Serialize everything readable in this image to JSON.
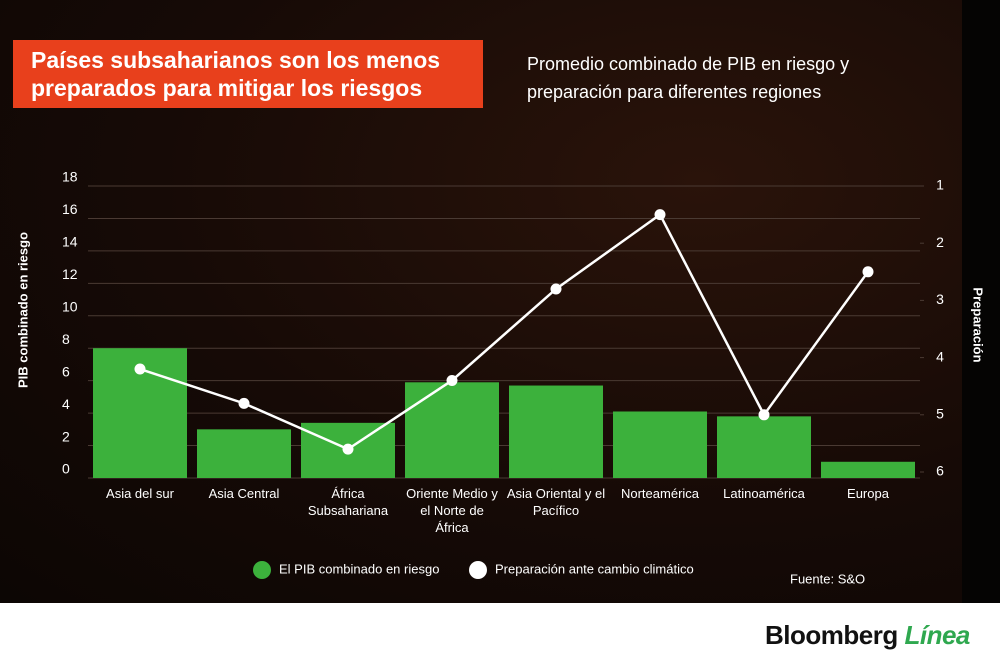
{
  "chart_data": {
    "type": "bar-line",
    "title": "Países subsaharianos son los menos preparados para mitigar los riesgos",
    "subtitle": "Promedio combinado de PIB en riesgo y preparación para diferentes regiones",
    "y_label": "PIB combinado en riesgo",
    "y2_label": "Preparación",
    "source": "Fuente: S&O",
    "categories": [
      "Asia del sur",
      "Asia Central",
      "África Subsahariana",
      "Oriente Medio y el Norte de África",
      "Asia Oriental y el Pacífico",
      "Norteamérica",
      "Latinoamérica",
      "Europa"
    ],
    "series": [
      {
        "name": "El PIB combinado en riesgo",
        "type": "bar",
        "color": "#3cb13c",
        "values": [
          8.0,
          3.0,
          3.4,
          5.9,
          5.7,
          4.1,
          3.8,
          1.0
        ]
      },
      {
        "name": "Preparación ante cambio climático",
        "type": "line",
        "color": "#ffffff",
        "axis": "y2",
        "values": [
          4.2,
          4.8,
          5.6,
          4.4,
          2.8,
          1.5,
          5.0,
          2.5
        ]
      }
    ],
    "ylim": [
      0,
      18
    ],
    "yticks": [
      0,
      2,
      4,
      6,
      8,
      10,
      12,
      14,
      16,
      18
    ],
    "y2lim": [
      1,
      6
    ],
    "y2ticks": [
      1,
      2,
      3,
      4,
      5,
      6
    ],
    "y2_inverted": true,
    "grid": true
  },
  "footer": {
    "brand": "Bloomberg",
    "brand_accent": "Línea"
  }
}
